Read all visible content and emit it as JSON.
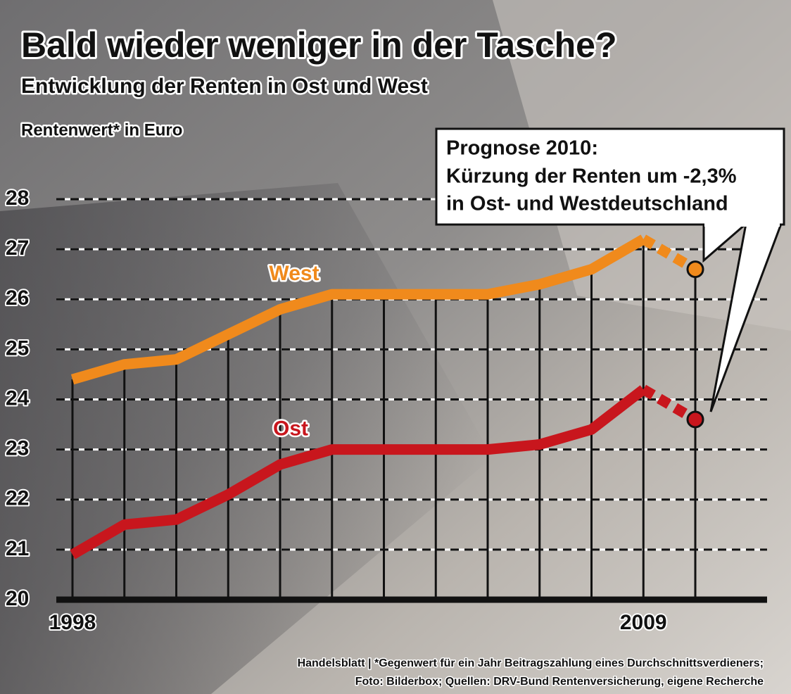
{
  "chart_data": {
    "type": "line",
    "title": "Bald wieder weniger in der Tasche?",
    "subtitle": "Entwicklung der Renten in Ost und West",
    "y_label": "Rentenwert* in Euro",
    "annotation": [
      "Prognose 2010:",
      "Kürzung der Renten um -2,3%",
      "in Ost- und Westdeutschland"
    ],
    "source": [
      "Handelsblatt | *Gegenwert für ein Jahr Beitragszahlung eines Durchschnittsverdieners;",
      "Foto: Bilderbox; Quellen: DRV-Bund Rentenversicherung, eigene Recherche"
    ],
    "categories": [
      "1998",
      null,
      null,
      null,
      null,
      null,
      null,
      null,
      null,
      null,
      null,
      "2009",
      null
    ],
    "series": [
      {
        "name": "West",
        "color": "#f08a1c",
        "values": [
          24.4,
          24.7,
          24.8,
          25.3,
          25.8,
          26.1,
          26.1,
          26.1,
          26.1,
          26.3,
          26.6,
          27.2,
          26.6
        ]
      },
      {
        "name": "Ost",
        "color": "#c8161d",
        "values": [
          20.9,
          21.5,
          21.6,
          22.1,
          22.7,
          23.0,
          23.0,
          23.0,
          23.0,
          23.1,
          23.4,
          24.2,
          23.6
        ]
      }
    ],
    "ylim": [
      20,
      28
    ],
    "yticks": [
      20,
      21,
      22,
      23,
      24,
      25,
      26,
      27,
      28
    ],
    "grid": true
  }
}
